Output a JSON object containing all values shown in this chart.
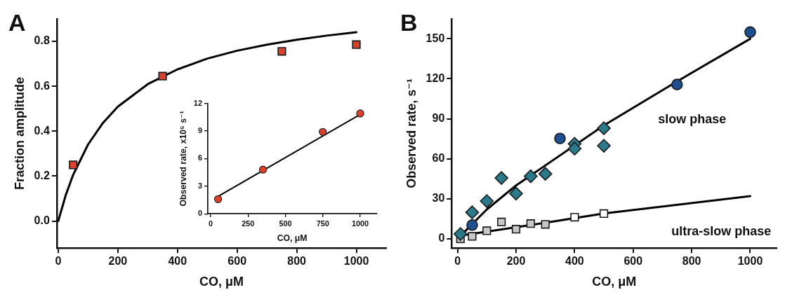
{
  "chart_data": [
    {
      "type": "scatter",
      "title": "A",
      "xlabel": "CO, μM",
      "ylabel": "Fraction amplitude",
      "xlim": [
        -5,
        1100
      ],
      "ylim": [
        -0.12,
        0.9
      ],
      "xticks": [
        0,
        200,
        400,
        600,
        800,
        1000
      ],
      "yticks": [
        {
          "value": 0,
          "label": "0.0"
        },
        0.2,
        0.4,
        0.6,
        0.8
      ],
      "grid": false,
      "legend": false,
      "series": [
        {
          "type": "scatter",
          "marker": "square",
          "color": "#d9412b",
          "x": [
            50,
            350,
            750,
            1000
          ],
          "values": [
            0.25,
            0.645,
            0.755,
            0.785
          ]
        },
        {
          "type": "line",
          "marker": "none",
          "line_style": "solid",
          "color": "#000000",
          "x": [
            0,
            25,
            50,
            100,
            150,
            200,
            300,
            400,
            500,
            600,
            700,
            800,
            900,
            1000
          ],
          "values": [
            0,
            0.115,
            0.206,
            0.341,
            0.437,
            0.509,
            0.609,
            0.675,
            0.723,
            0.758,
            0.785,
            0.807,
            0.825,
            0.84
          ]
        }
      ]
    },
    {
      "type": "scatter",
      "xlabel": "CO, μM",
      "ylabel": "Observed rate, x10⁵ s⁻¹",
      "xlim": [
        -20,
        1110
      ],
      "ylim": [
        0,
        12
      ],
      "xticks": [
        0,
        250,
        500,
        750,
        1000
      ],
      "yticks": [
        0,
        3,
        6,
        9,
        12
      ],
      "grid": false,
      "legend": false,
      "series": [
        {
          "type": "scatter",
          "marker": "circle",
          "color": "#d9412b",
          "x": [
            50,
            350,
            750,
            1000
          ],
          "values": [
            1.6,
            4.8,
            8.9,
            10.9
          ]
        },
        {
          "type": "line",
          "marker": "none",
          "line_style": "solid",
          "color": "#000000",
          "x": [
            50,
            1000
          ],
          "values": [
            1.9,
            10.8
          ]
        }
      ]
    },
    {
      "type": "scatter",
      "title": "B",
      "xlabel": "CO, μM",
      "ylabel": "Observed rate, s⁻¹",
      "xlim": [
        -20,
        1090
      ],
      "ylim": [
        -7,
        165
      ],
      "xticks": [
        0,
        200,
        400,
        600,
        800,
        1000
      ],
      "yticks": [
        0,
        30,
        60,
        90,
        120,
        150
      ],
      "grid": false,
      "legend": false,
      "annotations": [
        "slow phase",
        "ultra-slow phase"
      ],
      "series": [
        {
          "type": "scatter",
          "marker": "circle",
          "color": "#1f4f8f",
          "x": [
            50,
            350,
            750,
            1000
          ],
          "values": [
            10.3,
            75.2,
            115.7,
            155
          ]
        },
        {
          "type": "scatter",
          "marker": "diamond",
          "color": "#2b7a8c",
          "x": [
            10,
            50,
            100,
            150,
            200,
            250,
            300,
            400,
            400,
            500,
            500
          ],
          "values": [
            3.6,
            19.8,
            28.3,
            45.6,
            33.9,
            46.9,
            48.7,
            71.2,
            67.6,
            82.9,
            69.8
          ]
        },
        {
          "type": "scatter",
          "marker": "square",
          "color": "#c8c8c8",
          "x": [
            10,
            50,
            100,
            150,
            200,
            250,
            300
          ],
          "values": [
            0,
            1.8,
            6,
            12.6,
            7.2,
            11.4,
            10.8
          ]
        },
        {
          "type": "scatter",
          "marker": "square",
          "color": "#ffffff",
          "x": [
            400,
            500
          ],
          "values": [
            16.2,
            18.9
          ]
        },
        {
          "type": "line",
          "marker": "none",
          "line_style": "solid",
          "color": "#000000",
          "x": [
            0,
            100,
            200,
            400,
            500,
            750,
            1000
          ],
          "values": [
            0,
            22,
            40,
            70,
            85,
            118,
            150
          ]
        },
        {
          "type": "line",
          "marker": "none",
          "line_style": "solid",
          "color": "#000000",
          "x": [
            0,
            300,
            500,
            1000
          ],
          "values": [
            2,
            12,
            19,
            32
          ]
        }
      ]
    }
  ]
}
